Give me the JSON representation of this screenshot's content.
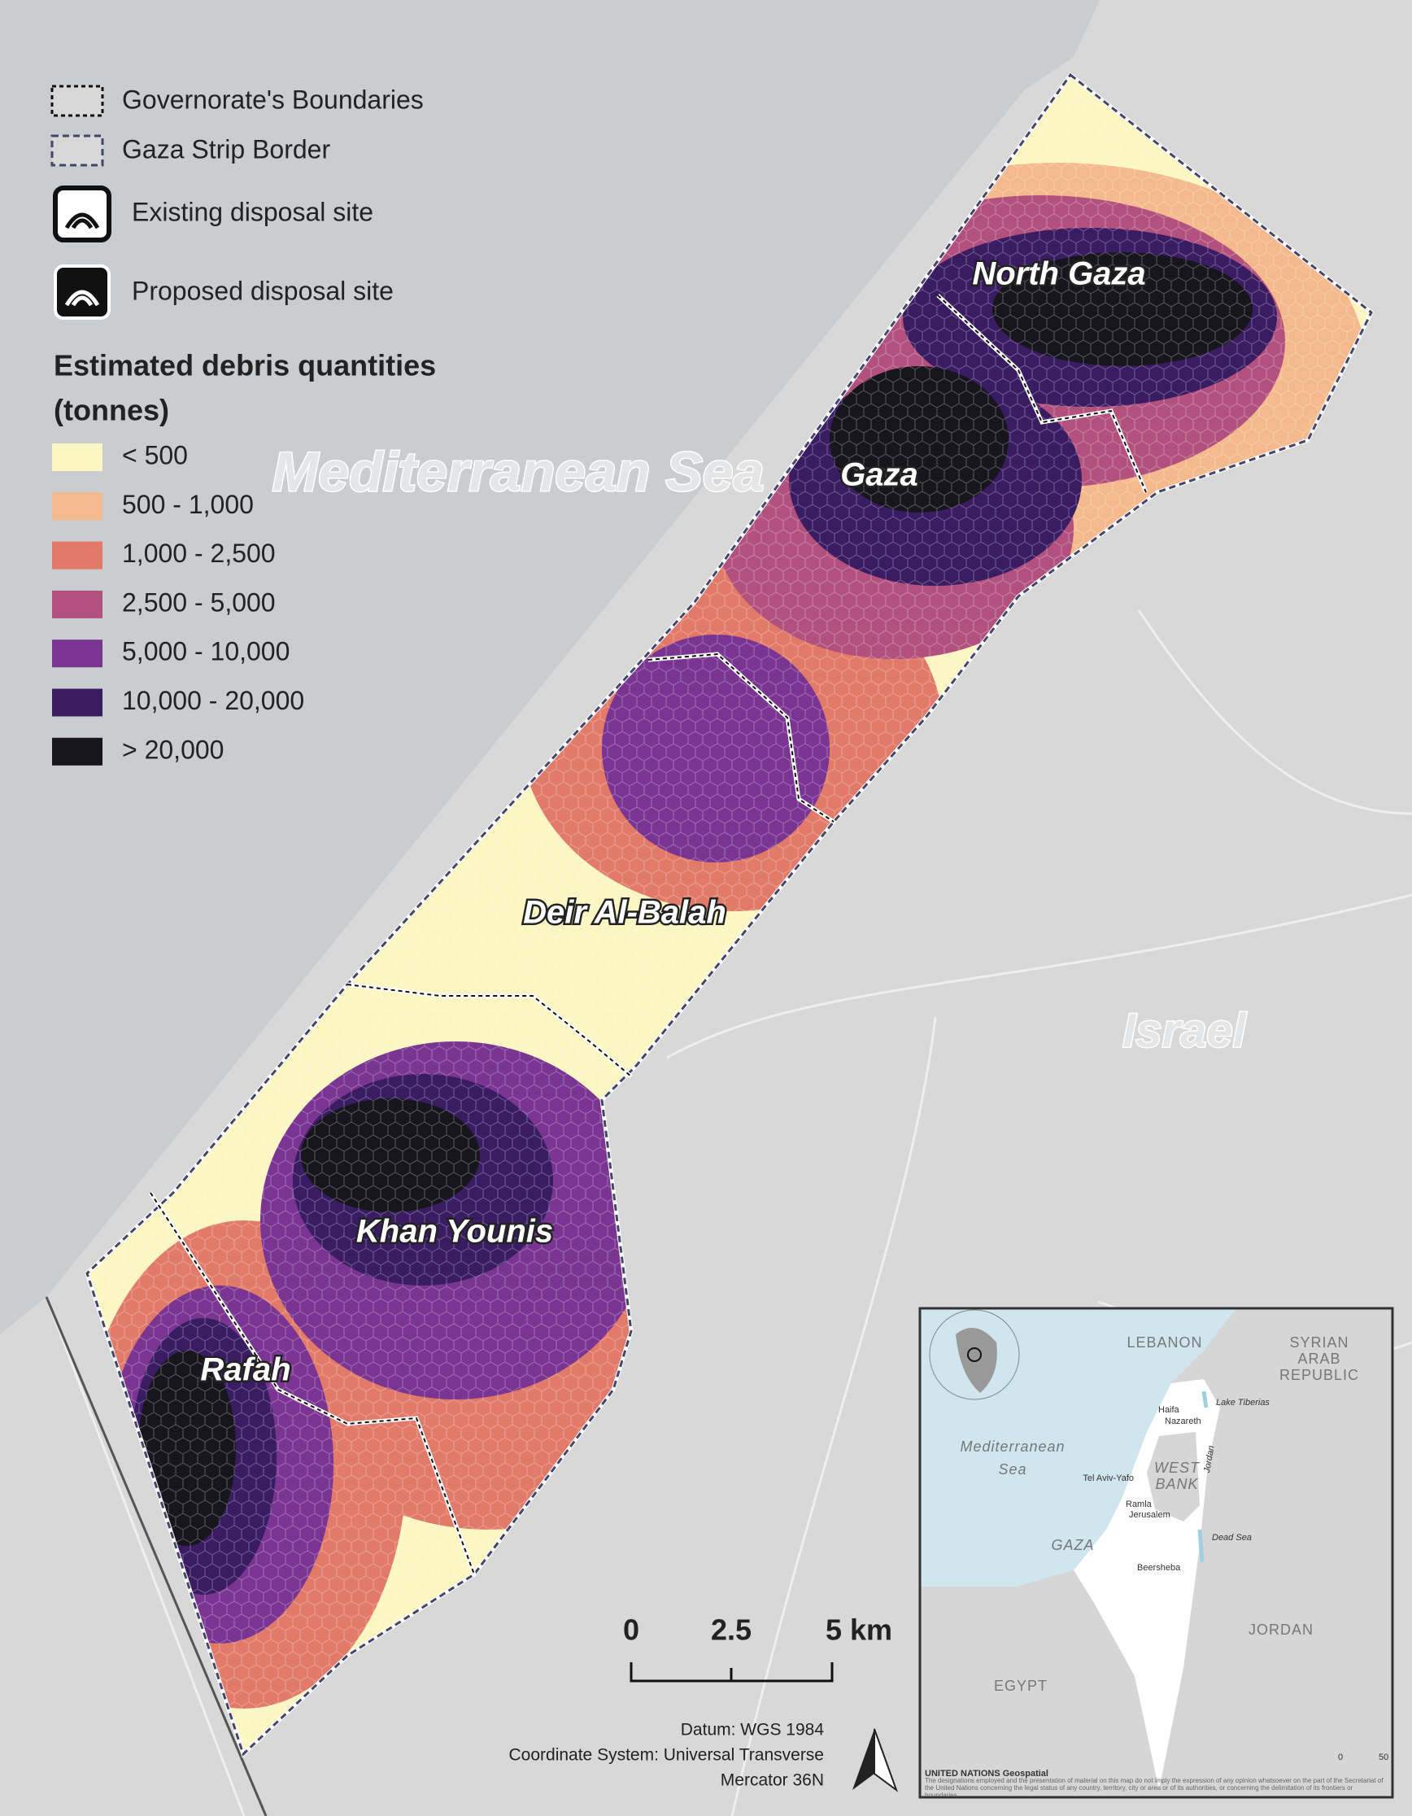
{
  "legend": {
    "boundaries": [
      "Governorate's Boundaries",
      "Gaza Strip Border"
    ],
    "disposal": [
      "Existing disposal site",
      "Proposed disposal site"
    ],
    "title": "Estimated debris quantities",
    "unit": "(tonnes)",
    "classes": [
      {
        "label": "< 500",
        "color": "#fcf6c3"
      },
      {
        "label": "500 - 1,000",
        "color": "#f4b98c"
      },
      {
        "label": "1,000 - 2,500",
        "color": "#e27a6a"
      },
      {
        "label": "2,500 - 5,000",
        "color": "#b2517e"
      },
      {
        "label": "5,000 - 10,000",
        "color": "#7a3593"
      },
      {
        "label": "10,000 - 20,000",
        "color": "#3a1c62"
      },
      {
        "label": "> 20,000",
        "color": "#17161d"
      }
    ]
  },
  "labels": {
    "sea": "Mediterranean Sea",
    "country": "Israel",
    "governorates": [
      "North Gaza",
      "Gaza",
      "Deir Al-Balah",
      "Khan Younis",
      "Rafah"
    ]
  },
  "scale_bar": [
    "0",
    "2.5",
    "5 km"
  ],
  "notes": [
    "Datum: WGS 1984",
    "Coordinate System: Universal Transverse",
    "Mercator 36N"
  ],
  "inset": {
    "countries": [
      "LEBANON",
      "SYRIAN",
      "ARAB",
      "REPUBLIC",
      "WEST",
      "BANK",
      "GAZA",
      "JORDAN",
      "EGYPT"
    ],
    "sea": [
      "Mediterranean",
      "Sea"
    ],
    "cities": [
      "Haifa",
      "Nazareth",
      "Tel Aviv-Yafo",
      "Ramla",
      "Jerusalem",
      "Beersheba"
    ],
    "water": [
      "Lake Tiberias",
      "Jordan",
      "Dead Sea"
    ],
    "scale": [
      "0",
      "50"
    ],
    "footer": "UNITED NATIONS Geospatial",
    "disclaimer": "The designations employed and the presentation of material on this map do not imply the expression of any opinion whatsoever on the part of the Secretariat of the United Nations concerning the legal status of any country, territory, city or area or of its authorities, or concerning the delimitation of its frontiers or boundaries."
  }
}
